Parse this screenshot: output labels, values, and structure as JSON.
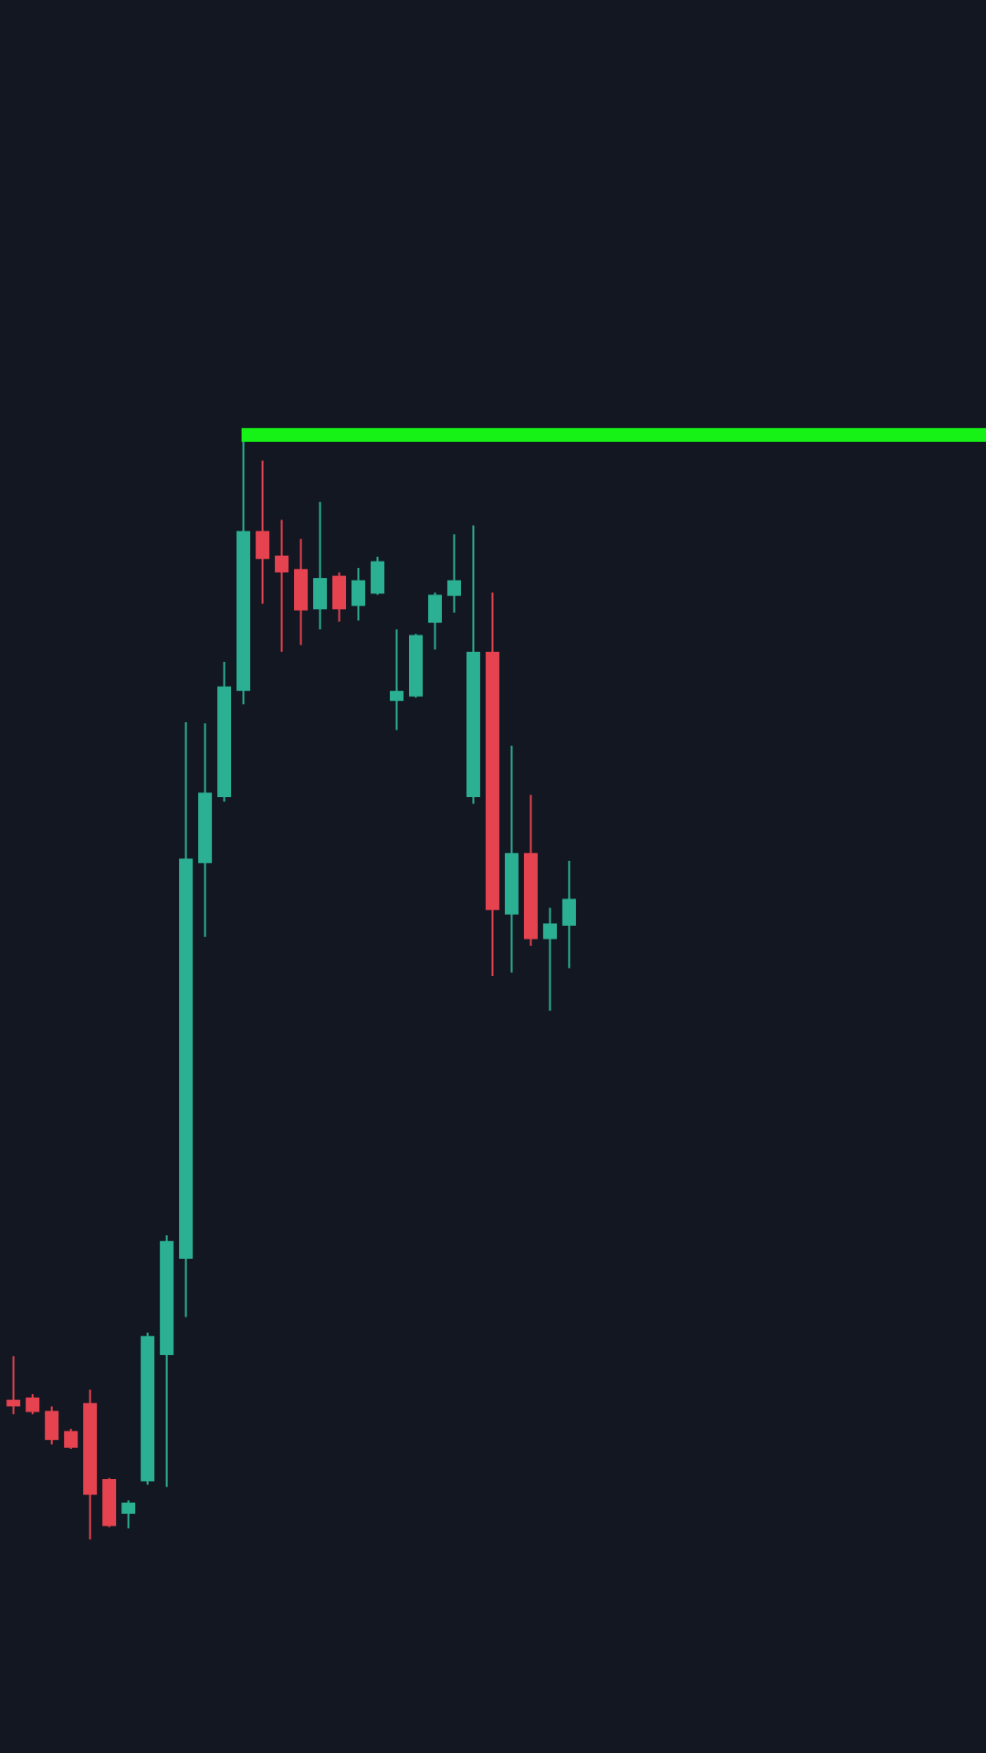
{
  "chart_data": {
    "type": "candlestick",
    "categories": [
      null,
      null,
      null,
      null,
      null,
      null,
      null,
      null,
      null,
      null,
      null,
      null,
      null,
      null,
      null,
      null,
      null,
      null,
      null,
      null,
      null,
      null,
      null,
      null,
      null,
      null,
      null,
      null,
      null,
      null
    ],
    "open": [
      316,
      318,
      306,
      288,
      313,
      245,
      214,
      243,
      356,
      442,
      796,
      855,
      950,
      1093,
      1071,
      1059,
      1023,
      1053,
      1026,
      1037,
      941,
      945,
      1011,
      1035,
      855,
      985,
      750,
      805,
      728,
      740
    ],
    "high": [
      355,
      321,
      310,
      290,
      325,
      246,
      226,
      376,
      463,
      922,
      921,
      976,
      1173,
      1156,
      1103,
      1086,
      1119,
      1056,
      1060,
      1070,
      1005,
      1001,
      1038,
      1090,
      1098,
      1038,
      901,
      857,
      756,
      798
    ],
    "low": [
      303,
      303,
      276,
      272,
      191,
      202,
      201,
      240,
      238,
      390,
      730,
      851,
      938,
      1028,
      985,
      991,
      1005,
      1012,
      1013,
      1036,
      915,
      944,
      987,
      1020,
      849,
      695,
      698,
      722,
      664,
      702
    ],
    "close": [
      310,
      305,
      280,
      273,
      231,
      203,
      224,
      373,
      458,
      800,
      859,
      954,
      1093,
      1068,
      1056,
      1022,
      1051,
      1023,
      1049,
      1066,
      950,
      1000,
      1036,
      1049,
      985,
      754,
      805,
      728,
      742,
      764
    ],
    "up_color": "#2bb094",
    "down_color": "#e5434f",
    "level": 1179,
    "level_color": "#16f216",
    "ylim": [
      0,
      1568
    ]
  }
}
